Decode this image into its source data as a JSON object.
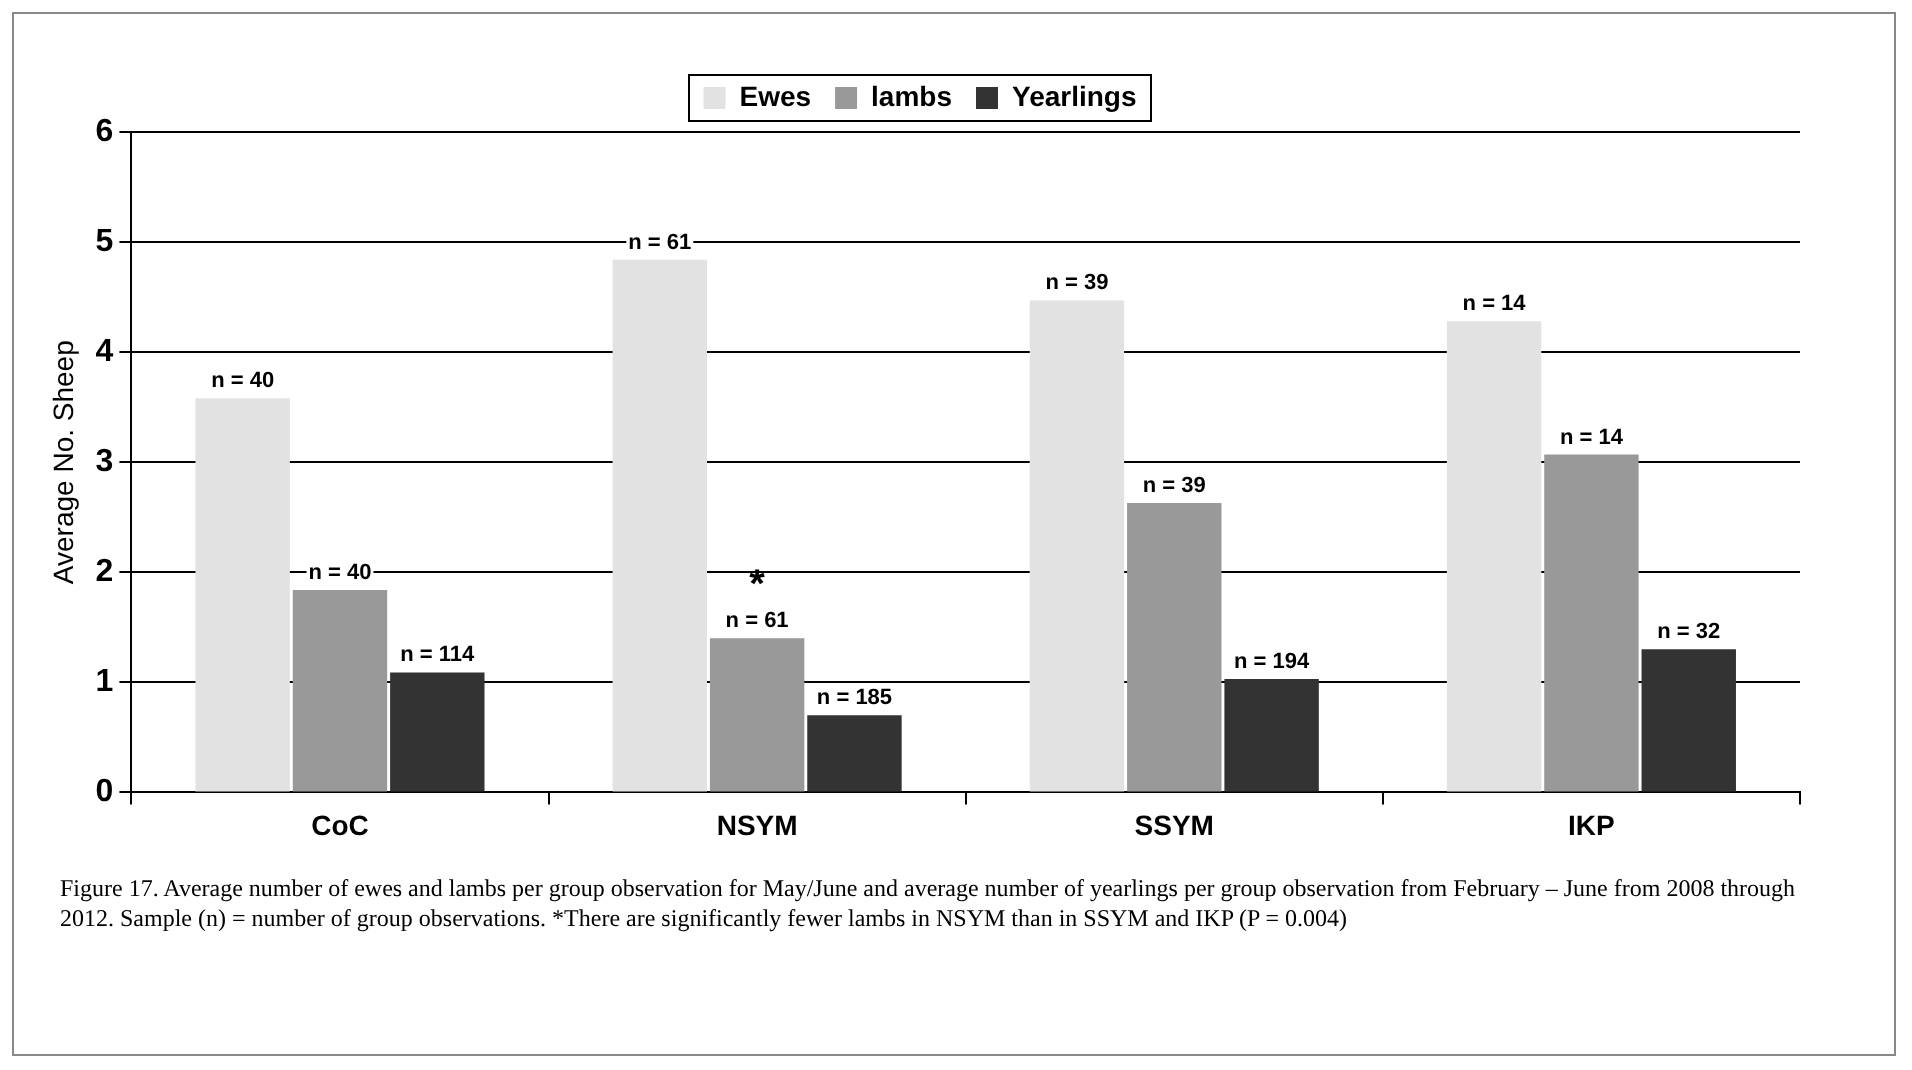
{
  "chart_data": {
    "type": "bar",
    "ylabel": "Average No. Sheep",
    "categories": [
      "CoC",
      "NSYM",
      "SSYM",
      "IKP"
    ],
    "series": [
      {
        "name": "Ewes",
        "color": "#e2e2e2",
        "values": [
          3.58,
          4.84,
          4.47,
          4.28
        ]
      },
      {
        "name": "lambs",
        "color": "#999999",
        "values": [
          1.84,
          1.4,
          2.63,
          3.07
        ]
      },
      {
        "name": "Yearlings",
        "color": "#333333",
        "values": [
          1.09,
          0.7,
          1.03,
          1.3
        ]
      }
    ],
    "ylim": [
      0,
      6
    ],
    "yticks": [
      0,
      1,
      2,
      3,
      4,
      5,
      6
    ],
    "grid": "y",
    "legend": "top",
    "annotations": [
      "n = 40",
      "n = 61",
      "n = 39",
      "n = 14",
      "n = 40",
      "n = 61",
      "n = 39",
      "n = 14",
      "n = 114",
      "n = 185",
      "n = 194",
      "n = 32",
      {
        "text": "*",
        "x": "NSYM",
        "y": 1.4
      },
      "Figure 17. Average number of ewes and lambs per group observation for May/June and average number of yearlings per group observation from February – June from 2008 through 2012. Sample (n) = number of group observations. *There are significantly fewer lambs in NSYM than in SSYM and IKP (P = 0.004)"
    ]
  }
}
